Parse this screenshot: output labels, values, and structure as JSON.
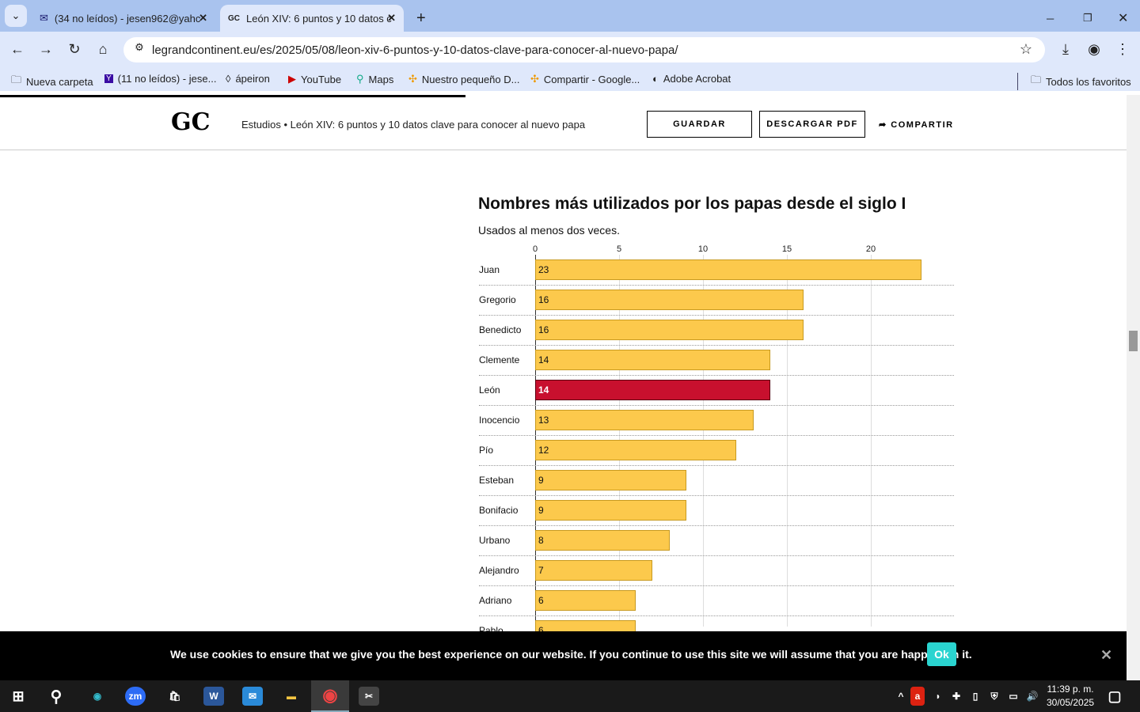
{
  "browser": {
    "tabs": [
      {
        "label": "(34 no leídos) - jesen962@yahc",
        "icon": "mail-icon"
      },
      {
        "label": "León XIV: 6 puntos y 10 datos c",
        "icon": "gc-favicon"
      }
    ],
    "url": "legrandcontinent.eu/es/2025/05/08/leon-xiv-6-puntos-y-10-datos-clave-para-conocer-al-nuevo-papa/",
    "bookmarks": [
      "Nueva carpeta",
      "(11 no leídos) - jese...",
      "ápeiron",
      "YouTube",
      "Maps",
      "Nuestro pequeño D...",
      "Compartir - Google...",
      "Adobe Acrobat"
    ],
    "all_bookmarks": "Todos los favoritos"
  },
  "site": {
    "logo": "GC",
    "breadcrumb": "Estudios • León XIV: 6 puntos y 10 datos clave para conocer al nuevo papa",
    "save": "GUARDAR",
    "pdf": "DESCARGAR PDF",
    "share": "COMPARTIR"
  },
  "chart_data": {
    "type": "bar",
    "orientation": "horizontal",
    "title": "Nombres más utilizados por los papas desde el siglo I",
    "subtitle": "Usados al menos dos veces.",
    "categories": [
      "Juan",
      "Gregorio",
      "Benedicto",
      "Clemente",
      "León",
      "Inocencio",
      "Pío",
      "Esteban",
      "Bonifacio",
      "Urbano",
      "Alejandro",
      "Adriano",
      "Pablo"
    ],
    "values": [
      23,
      16,
      16,
      14,
      14,
      13,
      12,
      9,
      9,
      8,
      7,
      6,
      6
    ],
    "highlight": "León",
    "xticks": [
      "0",
      "5",
      "10",
      "15",
      "20"
    ],
    "xlim": [
      0,
      25
    ],
    "grid": true,
    "colors": {
      "bar": "#fcc94c",
      "highlight": "#c8102e"
    }
  },
  "cookie": {
    "text": "We use cookies to ensure that we give you the best experience on our website. If you continue to use this site we will assume that you are happy with it.",
    "ok": "Ok",
    "accent": "#2ad4d0"
  },
  "taskbar": {
    "time": "11:39 p. m.",
    "date": "30/05/2025"
  }
}
